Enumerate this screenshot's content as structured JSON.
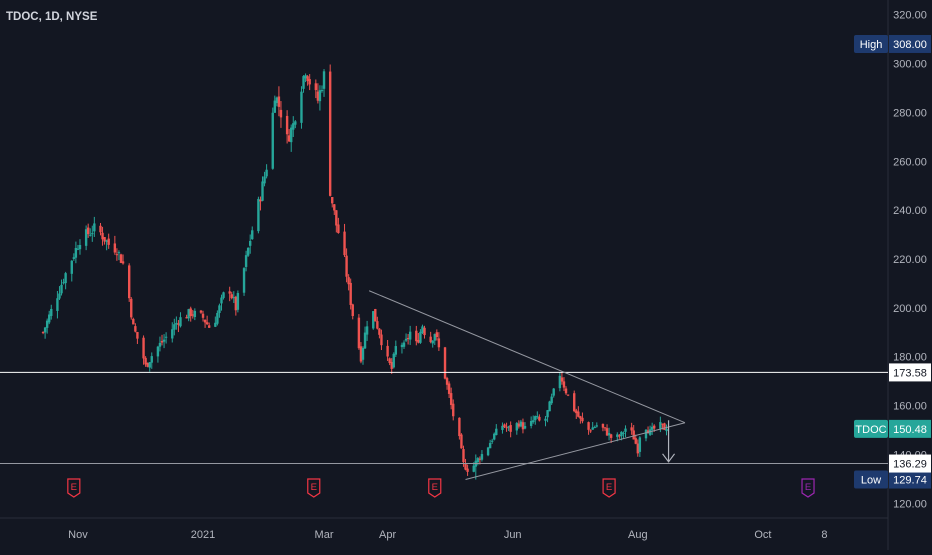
{
  "chart_data": {
    "type": "candlestick",
    "title": "TDOC, 1D, NYSE",
    "symbol": "TDOC",
    "ylim": [
      114,
      326
    ],
    "y_ticks": [
      120,
      140,
      160,
      180,
      200,
      220,
      240,
      260,
      280,
      300,
      320
    ],
    "y_tick_labels": [
      "120.00",
      "140.00",
      "160.00",
      "180.00",
      "200.00",
      "220.00",
      "240.00",
      "260.00",
      "280.00",
      "300.00",
      "320.00"
    ],
    "x_ticks": [
      {
        "label": "Nov",
        "day": 17
      },
      {
        "label": "2021",
        "day": 78
      },
      {
        "label": "Mar",
        "day": 137
      },
      {
        "label": "Apr",
        "day": 168
      },
      {
        "label": "Jun",
        "day": 229
      },
      {
        "label": "Aug",
        "day": 290
      },
      {
        "label": "Oct",
        "day": 351
      },
      {
        "label": "8",
        "day": 381
      }
    ],
    "x_range": [
      -21,
      412
    ],
    "anchors": [
      [
        0,
        190
      ],
      [
        10,
        212
      ],
      [
        18,
        228
      ],
      [
        26,
        233
      ],
      [
        32,
        226
      ],
      [
        36,
        224
      ],
      [
        40,
        216
      ],
      [
        44,
        192
      ],
      [
        48,
        183
      ],
      [
        50,
        176
      ],
      [
        54,
        182
      ],
      [
        60,
        188
      ],
      [
        66,
        195
      ],
      [
        72,
        198
      ],
      [
        78,
        196
      ],
      [
        82,
        191
      ],
      [
        86,
        200
      ],
      [
        90,
        210
      ],
      [
        94,
        200
      ],
      [
        98,
        216
      ],
      [
        102,
        232
      ],
      [
        106,
        246
      ],
      [
        110,
        262
      ],
      [
        113,
        288
      ],
      [
        116,
        280
      ],
      [
        119,
        269
      ],
      [
        122,
        275
      ],
      [
        125,
        288
      ],
      [
        128,
        298
      ],
      [
        131,
        290
      ],
      [
        134,
        285
      ],
      [
        137,
        295
      ],
      [
        140,
        248
      ],
      [
        143,
        234
      ],
      [
        146,
        225
      ],
      [
        149,
        208
      ],
      [
        152,
        192
      ],
      [
        155,
        180
      ],
      [
        158,
        194
      ],
      [
        161,
        198
      ],
      [
        164,
        190
      ],
      [
        167,
        180
      ],
      [
        170,
        175
      ],
      [
        173,
        188
      ],
      [
        176,
        184
      ],
      [
        179,
        190
      ],
      [
        182,
        185
      ],
      [
        185,
        193
      ],
      [
        188,
        185
      ],
      [
        191,
        190
      ],
      [
        194,
        180
      ],
      [
        197,
        168
      ],
      [
        200,
        156
      ],
      [
        203,
        146
      ],
      [
        205,
        136
      ],
      [
        208,
        133
      ],
      [
        212,
        138
      ],
      [
        216,
        142
      ],
      [
        220,
        148
      ],
      [
        224,
        152
      ],
      [
        228,
        150
      ],
      [
        232,
        153
      ],
      [
        236,
        150
      ],
      [
        240,
        155
      ],
      [
        244,
        152
      ],
      [
        247,
        160
      ],
      [
        250,
        168
      ],
      [
        252,
        173
      ],
      [
        255,
        166
      ],
      [
        258,
        160
      ],
      [
        262,
        154
      ],
      [
        266,
        150
      ],
      [
        270,
        152
      ],
      [
        274,
        150
      ],
      [
        278,
        146
      ],
      [
        282,
        148
      ],
      [
        285,
        152
      ],
      [
        288,
        147
      ],
      [
        290,
        142
      ],
      [
        292,
        154
      ],
      [
        296,
        149
      ],
      [
        300,
        152
      ],
      [
        304,
        150.48
      ]
    ],
    "wicks": [
      {
        "day": 292,
        "low": 136.29,
        "high": 156
      },
      {
        "day": 211,
        "low": 129.74,
        "high": 140
      },
      {
        "day": 131,
        "low": 285,
        "high": 308.0
      }
    ],
    "horizontal_lines": [
      {
        "value": 173.58,
        "label": "173.58"
      },
      {
        "value": 136.29,
        "label": "136.29"
      }
    ],
    "trendlines": [
      {
        "from": [
          159,
          207
        ],
        "to": [
          313,
          153
        ]
      },
      {
        "from": [
          206,
          129.74
        ],
        "to": [
          313,
          153
        ]
      }
    ],
    "projection_arrow": {
      "day": 305,
      "from": 154,
      "to": 137
    },
    "earnings_markers": [
      {
        "day": 15,
        "label": "E",
        "color": "#f23645"
      },
      {
        "day": 132,
        "label": "E",
        "color": "#f23645"
      },
      {
        "day": 191,
        "label": "E",
        "color": "#f23645"
      },
      {
        "day": 276,
        "label": "E",
        "color": "#f23645"
      },
      {
        "day": 373,
        "label": "E",
        "color": "#9c27b0"
      }
    ],
    "price_labels": {
      "high": {
        "tag": "High",
        "value": 308.0,
        "text": "308.00",
        "color": "#1e3a6e"
      },
      "current": {
        "tag": "TDOC",
        "value": 150.48,
        "text": "150.48",
        "color": "#26a69a"
      },
      "low": {
        "tag": "Low",
        "value": 129.74,
        "text": "129.74",
        "color": "#1e3a6e"
      }
    },
    "colors": {
      "background": "#131722",
      "up": "#26a69a",
      "down": "#ef5350",
      "grid": "#1e222d",
      "text": "#b2b5be",
      "line": "#d1d4dc"
    },
    "grid": false,
    "legend": "none"
  }
}
